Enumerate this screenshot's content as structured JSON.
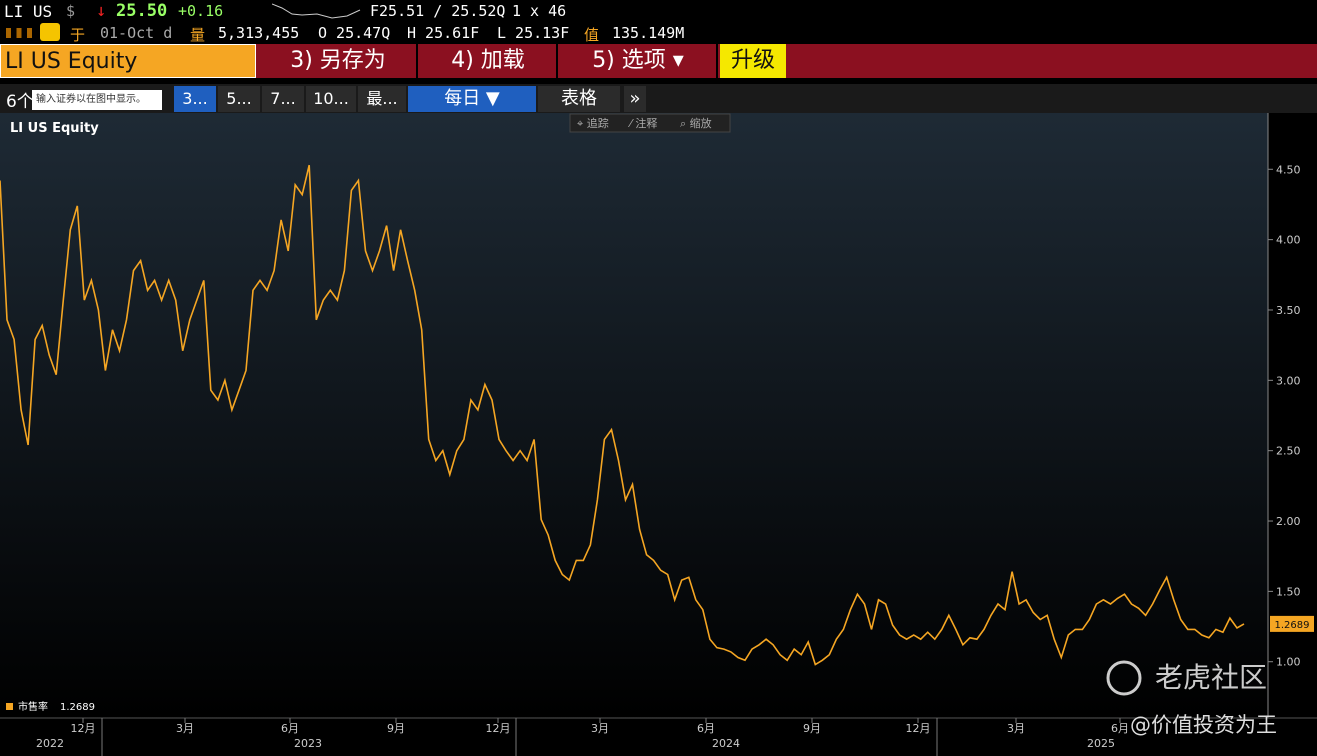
{
  "header": {
    "ticker": "LI US",
    "currency": "$",
    "arrow": "↓",
    "price": "25.50",
    "change": "+0.16",
    "bid_ask": "F25.51 / 25.52Q",
    "size": "1 x 46",
    "date_label": "于",
    "date": "01-Oct d",
    "volume_label": "量",
    "volume": "5,313,455",
    "open": "O 25.47Q",
    "high": "H 25.61F",
    "low": "L 25.13F",
    "value_label": "值",
    "value": "135.149M"
  },
  "menu": {
    "security": "LI US Equity",
    "items": [
      "3) 另存为",
      "4) 加载",
      "5) 选项 ▾"
    ],
    "upgrade": "升级"
  },
  "toolbar": {
    "prefix": "6个",
    "input_placeholder": "输入证券以在图中显示。",
    "periods": [
      "3...",
      "5...",
      "7...",
      "10...",
      "最..."
    ],
    "frequency": "每日 ▼",
    "table": "表格",
    "more": "»"
  },
  "chart_tools": [
    "⌖ 追踪",
    "⁄ 注释",
    "⌕ 缩放"
  ],
  "watermark": {
    "brand": "老虎社区",
    "author": "@价值投资为王"
  },
  "chart_data": {
    "type": "line",
    "title": "LI US Equity",
    "months": [
      "12月",
      "3月",
      "6月",
      "9月",
      "12月",
      "3月",
      "6月",
      "9月",
      "12月",
      "3月",
      "6月"
    ],
    "years": [
      "2022",
      "2023",
      "2024",
      "2025"
    ],
    "ylim": [
      0.6,
      4.9
    ],
    "yticks": [
      {
        "value": 1,
        "label": "1.00"
      },
      {
        "value": 1.5,
        "label": "1.50"
      },
      {
        "value": 2,
        "label": "2.00"
      },
      {
        "value": 2.5,
        "label": "2.50"
      },
      {
        "value": 3,
        "label": "3.00"
      },
      {
        "value": 3.5,
        "label": "3.50"
      },
      {
        "value": 4,
        "label": "4.00"
      },
      {
        "value": 4.5,
        "label": "4.50"
      }
    ],
    "series": [
      {
        "name": "市售率",
        "color": "#f5a623",
        "values": [
          4.42,
          3.43,
          3.29,
          2.79,
          2.54,
          3.29,
          3.39,
          3.18,
          3.04,
          3.57,
          4.07,
          4.24,
          3.57,
          3.71,
          3.5,
          3.07,
          3.36,
          3.21,
          3.43,
          3.78,
          3.85,
          3.64,
          3.71,
          3.57,
          3.71,
          3.57,
          3.21,
          3.43,
          3.57,
          3.71,
          2.93,
          2.86,
          3.0,
          2.79,
          2.93,
          3.07,
          3.64,
          3.71,
          3.64,
          3.78,
          4.14,
          3.92,
          4.39,
          4.32,
          4.53,
          3.43,
          3.57,
          3.64,
          3.57,
          3.78,
          4.35,
          4.42,
          3.92,
          3.78,
          3.92,
          4.1,
          3.78,
          4.07,
          3.85,
          3.64,
          3.36,
          2.58,
          2.43,
          2.5,
          2.33,
          2.5,
          2.58,
          2.86,
          2.79,
          2.97,
          2.86,
          2.58,
          2.5,
          2.43,
          2.5,
          2.43,
          2.58,
          2.01,
          1.9,
          1.72,
          1.62,
          1.58,
          1.72,
          1.72,
          1.83,
          2.15,
          2.58,
          2.65,
          2.43,
          2.15,
          2.26,
          1.94,
          1.76,
          1.72,
          1.65,
          1.62,
          1.44,
          1.58,
          1.6,
          1.44,
          1.37,
          1.16,
          1.1,
          1.09,
          1.07,
          1.03,
          1.01,
          1.09,
          1.12,
          1.16,
          1.12,
          1.05,
          1.01,
          1.09,
          1.05,
          1.14,
          0.98,
          1.01,
          1.05,
          1.16,
          1.23,
          1.37,
          1.48,
          1.41,
          1.23,
          1.44,
          1.41,
          1.26,
          1.19,
          1.16,
          1.19,
          1.16,
          1.21,
          1.16,
          1.23,
          1.33,
          1.23,
          1.12,
          1.17,
          1.16,
          1.23,
          1.33,
          1.41,
          1.37,
          1.64,
          1.41,
          1.44,
          1.35,
          1.3,
          1.33,
          1.16,
          1.03,
          1.19,
          1.23,
          1.23,
          1.3,
          1.41,
          1.44,
          1.41,
          1.45,
          1.48,
          1.41,
          1.38,
          1.33,
          1.41,
          1.51,
          1.6,
          1.44,
          1.3,
          1.23,
          1.23,
          1.19,
          1.17,
          1.23,
          1.21,
          1.31,
          1.24,
          1.2689
        ]
      }
    ]
  }
}
